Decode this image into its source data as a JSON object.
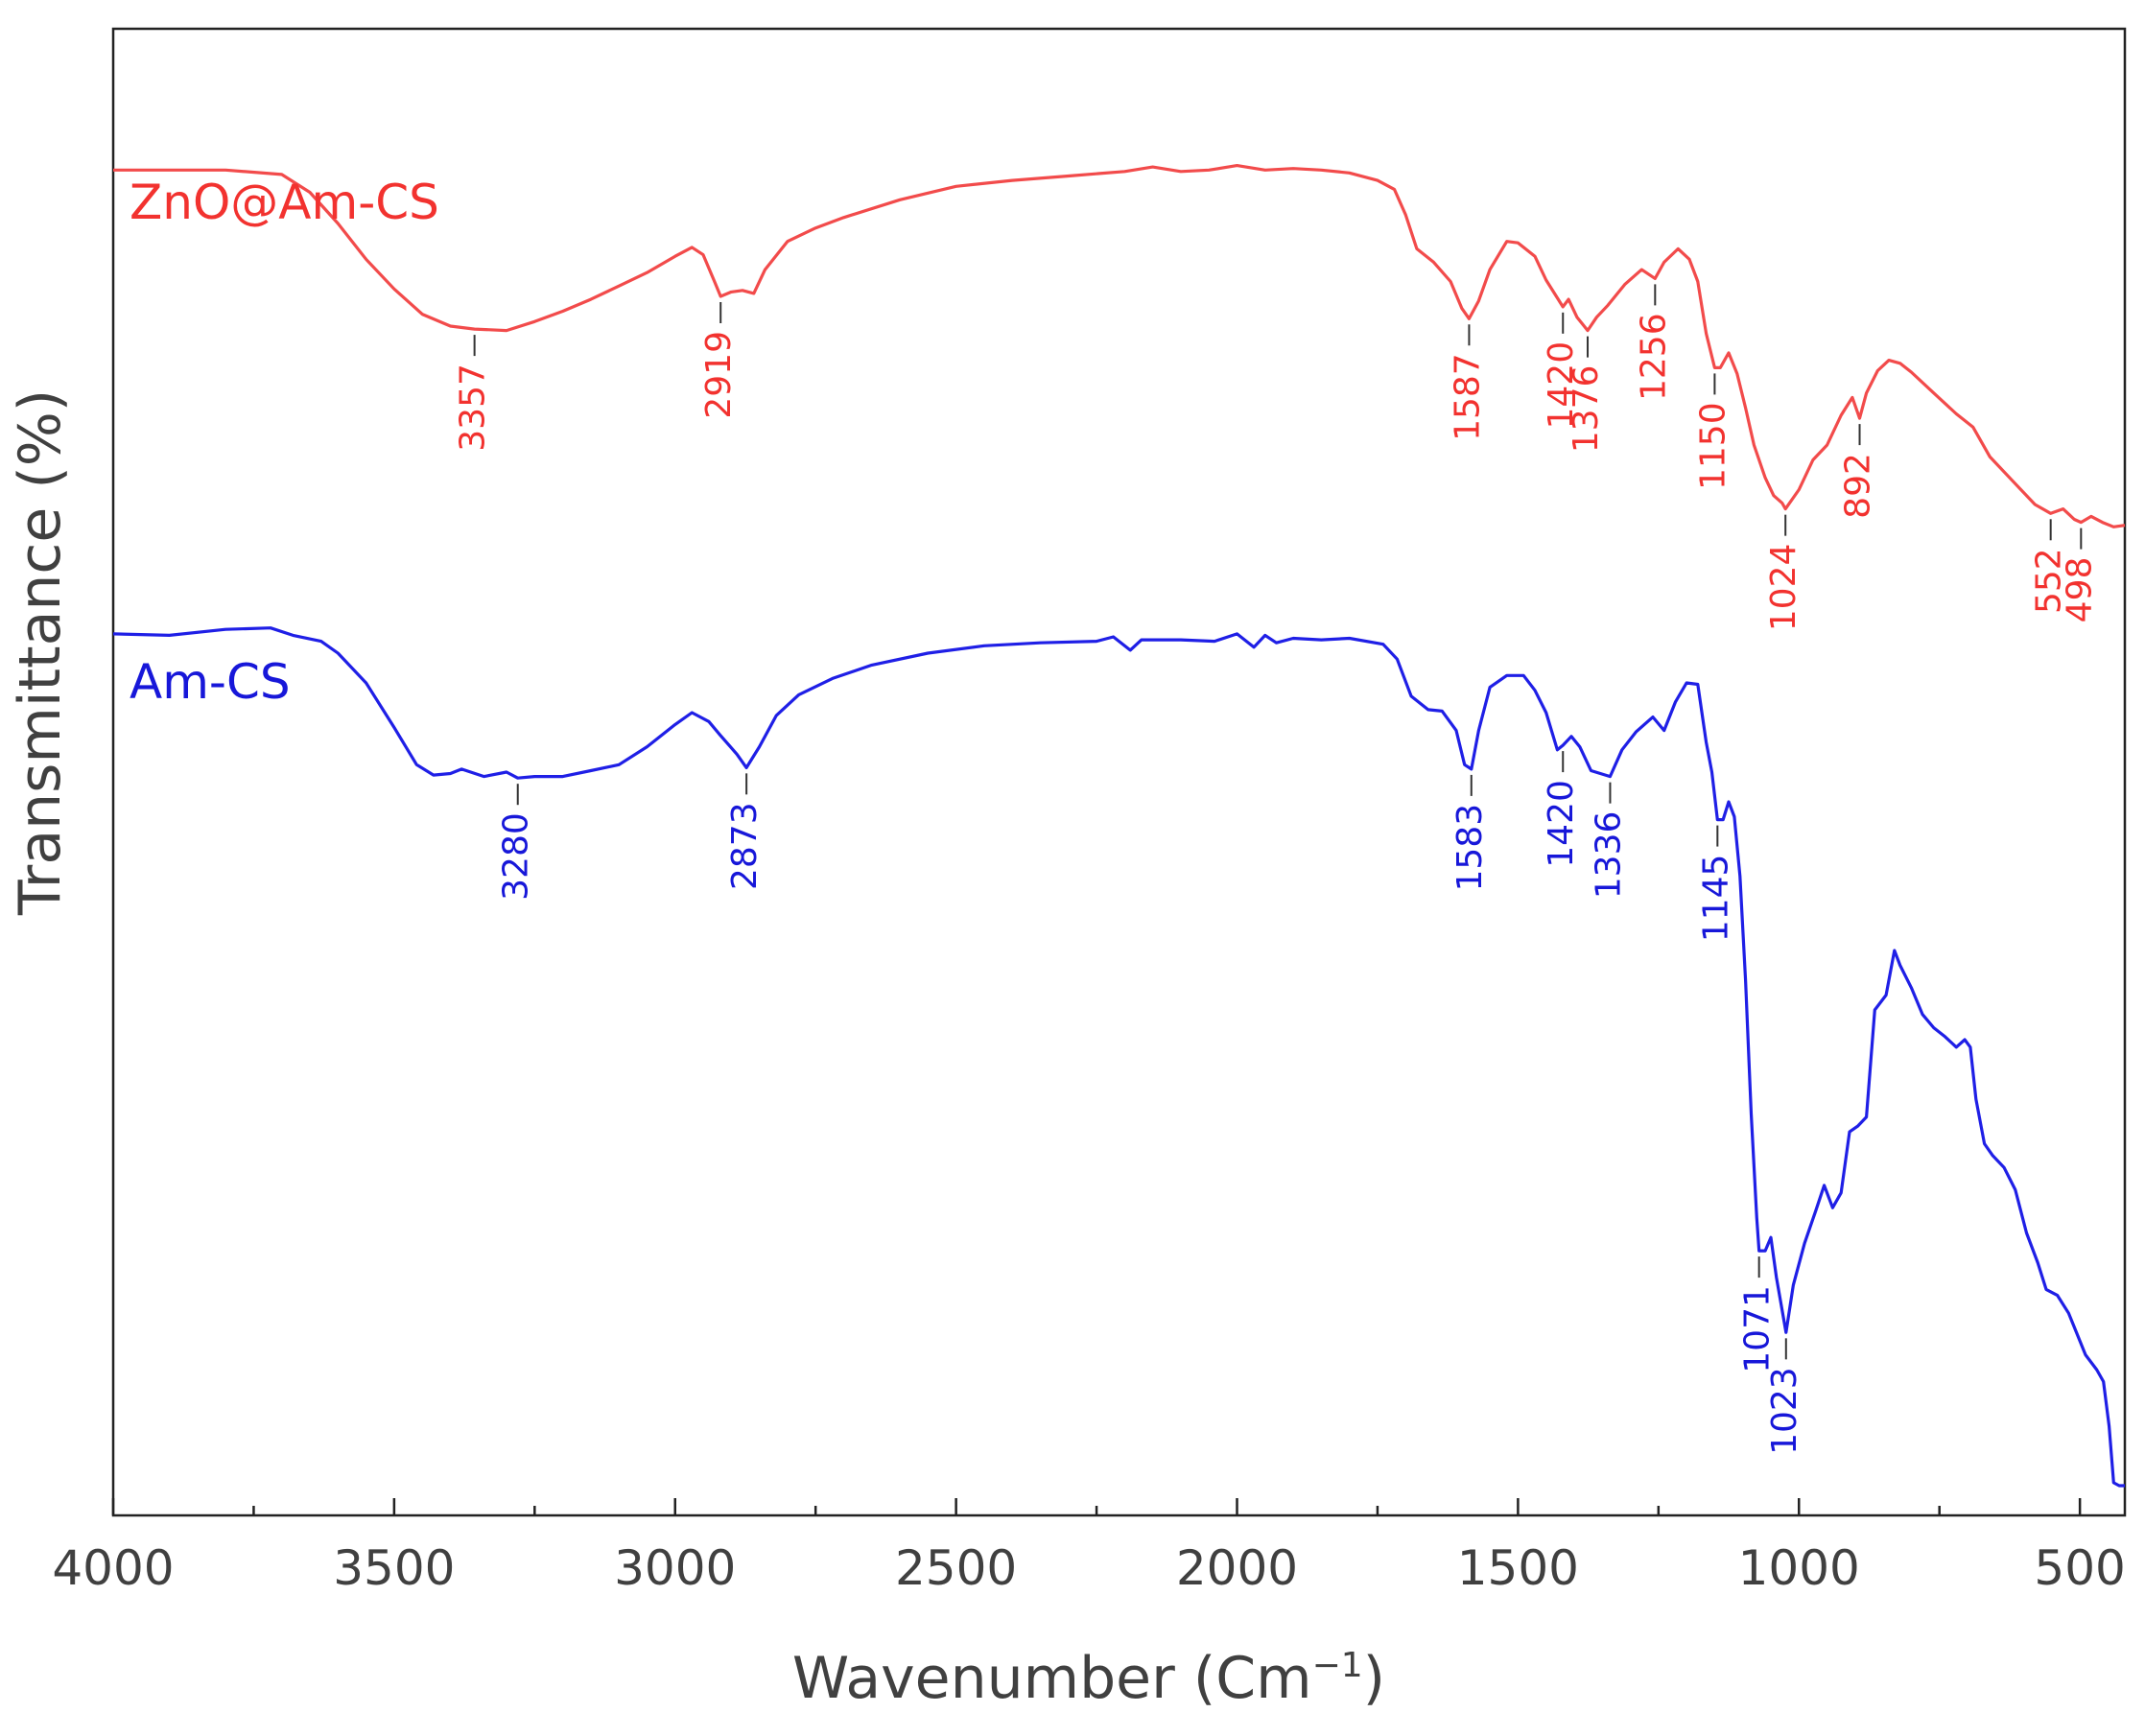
{
  "chart_data": {
    "type": "line",
    "xlabel": "Wavenumber (Cm",
    "xlabel_sup": "−1",
    "xlabel_close": ")",
    "ylabel": "Transmittance (%)",
    "xlim": [
      4000,
      420
    ],
    "x_reversed": true,
    "ylim": [
      0,
      1
    ],
    "y_ticks_shown": false,
    "grid": false,
    "x_ticks": [
      4000,
      3500,
      3000,
      2500,
      2000,
      1500,
      1000,
      500
    ],
    "series": [
      {
        "name": "ZnO@Am-CS",
        "color": "#f24b4b",
        "label_color": "#f2322f",
        "points": [
          [
            4000,
            0.905
          ],
          [
            3900,
            0.905
          ],
          [
            3800,
            0.905
          ],
          [
            3700,
            0.902
          ],
          [
            3650,
            0.89
          ],
          [
            3600,
            0.869
          ],
          [
            3550,
            0.845
          ],
          [
            3500,
            0.825
          ],
          [
            3450,
            0.808
          ],
          [
            3400,
            0.8
          ],
          [
            3357,
            0.798
          ],
          [
            3300,
            0.797
          ],
          [
            3250,
            0.803
          ],
          [
            3200,
            0.81
          ],
          [
            3150,
            0.818
          ],
          [
            3100,
            0.827
          ],
          [
            3050,
            0.836
          ],
          [
            3000,
            0.847
          ],
          [
            2970,
            0.853
          ],
          [
            2950,
            0.848
          ],
          [
            2930,
            0.83
          ],
          [
            2919,
            0.82
          ],
          [
            2900,
            0.823
          ],
          [
            2880,
            0.824
          ],
          [
            2860,
            0.822
          ],
          [
            2840,
            0.838
          ],
          [
            2800,
            0.857
          ],
          [
            2750,
            0.866
          ],
          [
            2700,
            0.873
          ],
          [
            2600,
            0.885
          ],
          [
            2500,
            0.894
          ],
          [
            2400,
            0.898
          ],
          [
            2300,
            0.901
          ],
          [
            2200,
            0.904
          ],
          [
            2150,
            0.907
          ],
          [
            2100,
            0.904
          ],
          [
            2050,
            0.905
          ],
          [
            2000,
            0.908
          ],
          [
            1950,
            0.905
          ],
          [
            1900,
            0.906
          ],
          [
            1850,
            0.905
          ],
          [
            1800,
            0.903
          ],
          [
            1750,
            0.898
          ],
          [
            1720,
            0.892
          ],
          [
            1700,
            0.875
          ],
          [
            1680,
            0.852
          ],
          [
            1650,
            0.843
          ],
          [
            1620,
            0.83
          ],
          [
            1600,
            0.812
          ],
          [
            1587,
            0.805
          ],
          [
            1570,
            0.817
          ],
          [
            1550,
            0.838
          ],
          [
            1520,
            0.857
          ],
          [
            1500,
            0.856
          ],
          [
            1470,
            0.847
          ],
          [
            1450,
            0.831
          ],
          [
            1430,
            0.819
          ],
          [
            1420,
            0.813
          ],
          [
            1410,
            0.818
          ],
          [
            1395,
            0.806
          ],
          [
            1376,
            0.797
          ],
          [
            1360,
            0.806
          ],
          [
            1340,
            0.814
          ],
          [
            1310,
            0.828
          ],
          [
            1280,
            0.838
          ],
          [
            1256,
            0.832
          ],
          [
            1240,
            0.843
          ],
          [
            1215,
            0.852
          ],
          [
            1195,
            0.845
          ],
          [
            1180,
            0.83
          ],
          [
            1165,
            0.795
          ],
          [
            1150,
            0.772
          ],
          [
            1140,
            0.772
          ],
          [
            1125,
            0.782
          ],
          [
            1110,
            0.768
          ],
          [
            1095,
            0.745
          ],
          [
            1080,
            0.72
          ],
          [
            1060,
            0.698
          ],
          [
            1045,
            0.686
          ],
          [
            1030,
            0.681
          ],
          [
            1024,
            0.677
          ],
          [
            1000,
            0.69
          ],
          [
            975,
            0.71
          ],
          [
            950,
            0.72
          ],
          [
            925,
            0.74
          ],
          [
            905,
            0.752
          ],
          [
            892,
            0.738
          ],
          [
            880,
            0.755
          ],
          [
            860,
            0.77
          ],
          [
            840,
            0.777
          ],
          [
            820,
            0.775
          ],
          [
            800,
            0.769
          ],
          [
            760,
            0.755
          ],
          [
            720,
            0.741
          ],
          [
            690,
            0.732
          ],
          [
            660,
            0.712
          ],
          [
            620,
            0.696
          ],
          [
            580,
            0.68
          ],
          [
            552,
            0.674
          ],
          [
            530,
            0.677
          ],
          [
            510,
            0.67
          ],
          [
            498,
            0.668
          ],
          [
            480,
            0.672
          ],
          [
            460,
            0.668
          ],
          [
            440,
            0.665
          ],
          [
            420,
            0.666
          ]
        ],
        "peaks": [
          "3357",
          "2919",
          "1587",
          "1420",
          "1376",
          "1256",
          "1150",
          "1024",
          "892",
          "552",
          "498"
        ]
      },
      {
        "name": "Am-CS",
        "color": "#1f1fe6",
        "label_color": "#1717d9",
        "points": [
          [
            4000,
            0.593
          ],
          [
            3900,
            0.592
          ],
          [
            3800,
            0.596
          ],
          [
            3720,
            0.597
          ],
          [
            3680,
            0.592
          ],
          [
            3630,
            0.588
          ],
          [
            3600,
            0.58
          ],
          [
            3550,
            0.56
          ],
          [
            3500,
            0.53
          ],
          [
            3460,
            0.505
          ],
          [
            3430,
            0.498
          ],
          [
            3400,
            0.499
          ],
          [
            3380,
            0.502
          ],
          [
            3340,
            0.497
          ],
          [
            3300,
            0.5
          ],
          [
            3280,
            0.496
          ],
          [
            3250,
            0.497
          ],
          [
            3200,
            0.497
          ],
          [
            3150,
            0.501
          ],
          [
            3100,
            0.505
          ],
          [
            3050,
            0.517
          ],
          [
            3000,
            0.532
          ],
          [
            2970,
            0.54
          ],
          [
            2940,
            0.534
          ],
          [
            2920,
            0.525
          ],
          [
            2890,
            0.512
          ],
          [
            2873,
            0.503
          ],
          [
            2850,
            0.517
          ],
          [
            2820,
            0.538
          ],
          [
            2780,
            0.552
          ],
          [
            2720,
            0.563
          ],
          [
            2650,
            0.572
          ],
          [
            2550,
            0.58
          ],
          [
            2450,
            0.585
          ],
          [
            2350,
            0.587
          ],
          [
            2250,
            0.588
          ],
          [
            2220,
            0.591
          ],
          [
            2190,
            0.582
          ],
          [
            2170,
            0.589
          ],
          [
            2100,
            0.589
          ],
          [
            2040,
            0.588
          ],
          [
            2000,
            0.593
          ],
          [
            1970,
            0.584
          ],
          [
            1950,
            0.592
          ],
          [
            1930,
            0.587
          ],
          [
            1900,
            0.59
          ],
          [
            1850,
            0.589
          ],
          [
            1800,
            0.59
          ],
          [
            1740,
            0.586
          ],
          [
            1715,
            0.576
          ],
          [
            1690,
            0.551
          ],
          [
            1660,
            0.542
          ],
          [
            1635,
            0.541
          ],
          [
            1610,
            0.528
          ],
          [
            1595,
            0.505
          ],
          [
            1583,
            0.502
          ],
          [
            1570,
            0.528
          ],
          [
            1550,
            0.557
          ],
          [
            1520,
            0.565
          ],
          [
            1490,
            0.565
          ],
          [
            1470,
            0.555
          ],
          [
            1450,
            0.54
          ],
          [
            1430,
            0.515
          ],
          [
            1420,
            0.518
          ],
          [
            1405,
            0.524
          ],
          [
            1390,
            0.517
          ],
          [
            1370,
            0.501
          ],
          [
            1336,
            0.497
          ],
          [
            1315,
            0.515
          ],
          [
            1290,
            0.527
          ],
          [
            1260,
            0.537
          ],
          [
            1240,
            0.528
          ],
          [
            1220,
            0.547
          ],
          [
            1200,
            0.56
          ],
          [
            1180,
            0.559
          ],
          [
            1165,
            0.52
          ],
          [
            1155,
            0.5
          ],
          [
            1145,
            0.468
          ],
          [
            1135,
            0.468
          ],
          [
            1125,
            0.48
          ],
          [
            1115,
            0.47
          ],
          [
            1105,
            0.43
          ],
          [
            1095,
            0.36
          ],
          [
            1085,
            0.27
          ],
          [
            1075,
            0.2
          ],
          [
            1071,
            0.178
          ],
          [
            1060,
            0.178
          ],
          [
            1050,
            0.187
          ],
          [
            1040,
            0.16
          ],
          [
            1023,
            0.123
          ],
          [
            1010,
            0.155
          ],
          [
            990,
            0.183
          ],
          [
            970,
            0.205
          ],
          [
            955,
            0.222
          ],
          [
            940,
            0.207
          ],
          [
            925,
            0.217
          ],
          [
            910,
            0.258
          ],
          [
            895,
            0.262
          ],
          [
            880,
            0.268
          ],
          [
            865,
            0.34
          ],
          [
            845,
            0.35
          ],
          [
            830,
            0.38
          ],
          [
            820,
            0.37
          ],
          [
            800,
            0.355
          ],
          [
            780,
            0.337
          ],
          [
            760,
            0.328
          ],
          [
            740,
            0.322
          ],
          [
            720,
            0.315
          ],
          [
            705,
            0.32
          ],
          [
            695,
            0.315
          ],
          [
            685,
            0.28
          ],
          [
            670,
            0.25
          ],
          [
            655,
            0.242
          ],
          [
            635,
            0.234
          ],
          [
            615,
            0.219
          ],
          [
            595,
            0.19
          ],
          [
            575,
            0.17
          ],
          [
            560,
            0.152
          ],
          [
            540,
            0.148
          ],
          [
            520,
            0.136
          ],
          [
            505,
            0.122
          ],
          [
            490,
            0.108
          ],
          [
            470,
            0.098
          ],
          [
            458,
            0.09
          ],
          [
            448,
            0.06
          ],
          [
            440,
            0.022
          ],
          [
            430,
            0.02
          ],
          [
            420,
            0.02
          ]
        ],
        "peaks": [
          "3280",
          "2873",
          "1583",
          "1420",
          "1336",
          "1145",
          "1071",
          "1023"
        ]
      }
    ]
  }
}
